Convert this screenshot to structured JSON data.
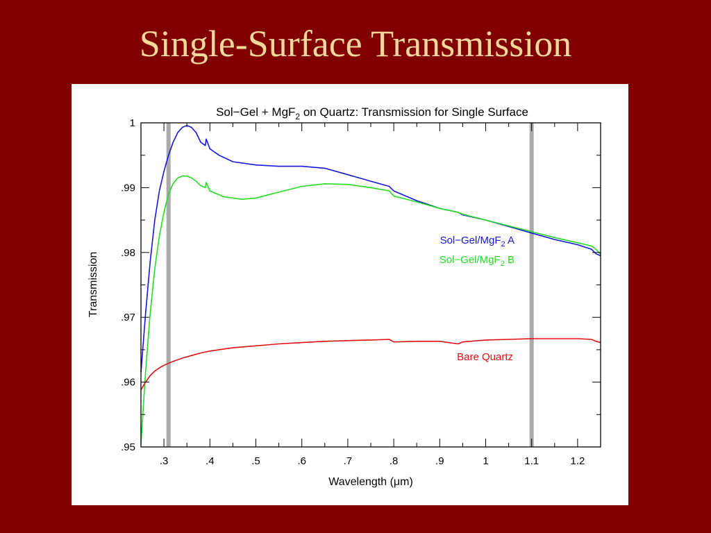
{
  "slide": {
    "title": "Single-Surface Transmission"
  },
  "chart_data": {
    "type": "line",
    "title_parts": [
      "Sol−Gel + MgF",
      "2",
      " on Quartz: Transmission for Single Surface"
    ],
    "xlabel": "Wavelength (μm)",
    "ylabel": "Transmission",
    "xlim": [
      0.25,
      1.25
    ],
    "ylim": [
      0.95,
      1.0
    ],
    "x_ticks": [
      0.3,
      0.4,
      0.5,
      0.6,
      0.7,
      0.8,
      0.9,
      1.0,
      1.1,
      1.2
    ],
    "x_tick_labels": [
      ".3",
      ".4",
      ".5",
      ".6",
      ".7",
      ".8",
      ".9",
      "1",
      "1.1",
      "1.2"
    ],
    "y_ticks": [
      0.95,
      0.96,
      0.97,
      0.98,
      0.99,
      1.0
    ],
    "y_tick_labels": [
      ".95",
      ".96",
      ".97",
      ".98",
      ".99",
      "1"
    ],
    "grid": false,
    "vertical_markers": [
      0.31,
      1.1
    ],
    "marker_color": "#aaaaaa",
    "series": [
      {
        "name_parts": [
          "Sol−Gel/MgF",
          "2",
          " A"
        ],
        "color": "#1515e0",
        "x": [
          0.25,
          0.26,
          0.27,
          0.28,
          0.29,
          0.3,
          0.31,
          0.32,
          0.33,
          0.34,
          0.35,
          0.36,
          0.37,
          0.38,
          0.39,
          0.392,
          0.4,
          0.42,
          0.45,
          0.5,
          0.55,
          0.6,
          0.65,
          0.7,
          0.75,
          0.79,
          0.8,
          0.85,
          0.9,
          0.94,
          0.95,
          1.0,
          1.05,
          1.1,
          1.15,
          1.2,
          1.23,
          1.24,
          1.25
        ],
        "y": [
          0.9615,
          0.9705,
          0.9785,
          0.985,
          0.9895,
          0.9925,
          0.995,
          0.997,
          0.9985,
          0.9993,
          0.9996,
          0.9993,
          0.9985,
          0.997,
          0.9965,
          0.9975,
          0.996,
          0.995,
          0.994,
          0.9935,
          0.9933,
          0.9933,
          0.993,
          0.992,
          0.991,
          0.9902,
          0.9895,
          0.988,
          0.9868,
          0.9862,
          0.9858,
          0.985,
          0.984,
          0.983,
          0.982,
          0.9812,
          0.9805,
          0.9798,
          0.9795
        ]
      },
      {
        "name_parts": [
          "Sol−Gel/MgF",
          "2",
          " B"
        ],
        "color": "#22dd22",
        "x": [
          0.25,
          0.26,
          0.27,
          0.28,
          0.29,
          0.3,
          0.31,
          0.32,
          0.33,
          0.34,
          0.35,
          0.36,
          0.37,
          0.38,
          0.39,
          0.392,
          0.4,
          0.43,
          0.47,
          0.5,
          0.55,
          0.6,
          0.65,
          0.7,
          0.75,
          0.79,
          0.8,
          0.85,
          0.9,
          0.94,
          0.95,
          1.0,
          1.05,
          1.1,
          1.15,
          1.2,
          1.23,
          1.24,
          1.25
        ],
        "y": [
          0.9505,
          0.9615,
          0.9705,
          0.9775,
          0.9825,
          0.9862,
          0.989,
          0.9906,
          0.9915,
          0.9918,
          0.9918,
          0.9915,
          0.991,
          0.9903,
          0.99,
          0.9908,
          0.9895,
          0.9886,
          0.9882,
          0.9884,
          0.9893,
          0.9902,
          0.9906,
          0.9905,
          0.99,
          0.9895,
          0.9887,
          0.9878,
          0.9868,
          0.9862,
          0.9859,
          0.985,
          0.9841,
          0.9832,
          0.9823,
          0.9815,
          0.981,
          0.9805,
          0.9797
        ]
      },
      {
        "name_parts": [
          "Bare Quartz"
        ],
        "color": "#e01010",
        "x": [
          0.25,
          0.26,
          0.27,
          0.28,
          0.29,
          0.3,
          0.32,
          0.34,
          0.36,
          0.38,
          0.4,
          0.45,
          0.5,
          0.55,
          0.6,
          0.65,
          0.7,
          0.75,
          0.79,
          0.8,
          0.85,
          0.9,
          0.94,
          0.95,
          1.0,
          1.05,
          1.1,
          1.15,
          1.2,
          1.23,
          1.24,
          1.25
        ],
        "y": [
          0.9588,
          0.96,
          0.961,
          0.9617,
          0.9622,
          0.9626,
          0.9632,
          0.9637,
          0.9641,
          0.9645,
          0.9648,
          0.9653,
          0.9656,
          0.9659,
          0.9661,
          0.9663,
          0.9664,
          0.9665,
          0.9666,
          0.9662,
          0.9663,
          0.9663,
          0.9659,
          0.9662,
          0.9665,
          0.9666,
          0.9667,
          0.9667,
          0.9667,
          0.9666,
          0.9663,
          0.9661
        ]
      }
    ]
  }
}
